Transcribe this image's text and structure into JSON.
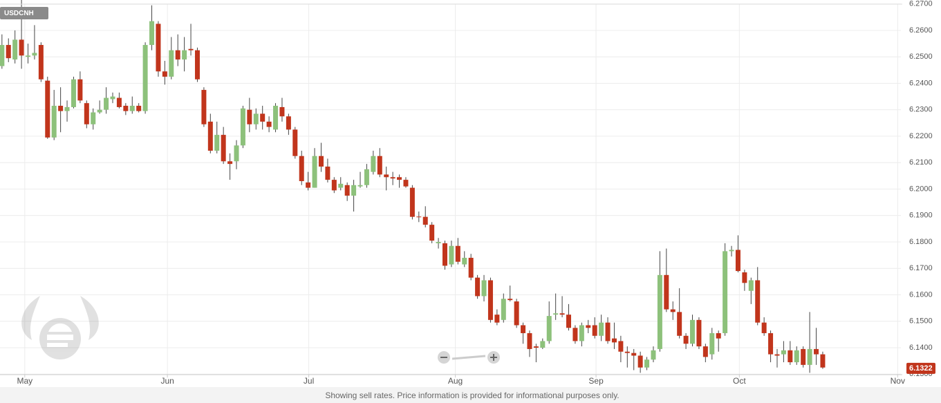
{
  "chart_data": {
    "type": "candlestick",
    "series": [
      {
        "name": "USDCNH",
        "up_color": "#8dc17b",
        "down_color": "#c1351c",
        "open": [
          6.2465,
          6.2545,
          6.249,
          6.2565,
          6.25,
          6.2505,
          6.2545,
          6.241,
          6.2195,
          6.2315,
          6.2295,
          6.231,
          6.2415,
          6.2325,
          6.2245,
          6.229,
          6.23,
          6.234,
          6.2345,
          6.2315,
          6.2295,
          6.2315,
          6.2295,
          6.2545,
          6.2625,
          6.2445,
          6.2425,
          6.2525,
          6.249,
          6.253,
          6.2525,
          6.2375,
          6.2255,
          6.2145,
          6.2205,
          6.2105,
          6.2105,
          6.2165,
          6.23,
          6.2245,
          6.2285,
          6.2255,
          6.2225,
          6.231,
          6.2275,
          6.2225,
          6.2125,
          6.2025,
          6.2005,
          6.2125,
          6.2085,
          6.2035,
          6.2005,
          6.2015,
          6.1975,
          6.201,
          6.2015,
          6.2065,
          6.2125,
          6.2055,
          6.2045,
          6.2045,
          6.2035,
          6.2005,
          6.1896,
          6.1895,
          6.1865,
          6.1795,
          6.1795,
          6.1715,
          6.1785,
          6.1715,
          6.174,
          6.1665,
          6.1595,
          6.1655,
          6.1525,
          6.1505,
          6.1585,
          6.1575,
          6.1485,
          6.1455,
          6.1405,
          6.14,
          6.1425,
          6.1525,
          6.153,
          6.1525,
          6.1475,
          6.1425,
          6.1485,
          6.1485,
          6.1445,
          6.1495,
          6.1435,
          6.1425,
          6.1385,
          6.138,
          6.137,
          6.1325,
          6.1355,
          6.1395,
          6.1675,
          6.1545,
          6.1535,
          6.1445,
          6.1415,
          6.1505,
          6.1405,
          6.1375,
          6.1455,
          6.1455,
          6.1765,
          6.177,
          6.1685,
          6.1615,
          6.1655,
          6.1495,
          6.1455,
          6.1375,
          6.1375,
          6.139,
          6.1345,
          6.1395,
          6.1335,
          6.1395,
          6.1375
        ],
        "high": [
          6.2585,
          6.257,
          6.26,
          6.273,
          6.255,
          6.262,
          6.2555,
          6.2425,
          6.2375,
          6.2385,
          6.2335,
          6.2425,
          6.2445,
          6.2335,
          6.2305,
          6.2335,
          6.2385,
          6.2365,
          6.2365,
          6.2325,
          6.235,
          6.2325,
          6.2555,
          6.2695,
          6.2635,
          6.2485,
          6.2575,
          6.2585,
          6.2575,
          6.2625,
          6.2535,
          6.2385,
          6.2285,
          6.2255,
          6.2235,
          6.2135,
          6.2185,
          6.2315,
          6.2345,
          6.2305,
          6.2315,
          6.2275,
          6.2325,
          6.2345,
          6.2285,
          6.2235,
          6.2145,
          6.2065,
          6.2155,
          6.2175,
          6.2115,
          6.2045,
          6.2045,
          6.2025,
          6.2035,
          6.2065,
          6.2095,
          6.2145,
          6.2155,
          6.2085,
          6.2065,
          6.2055,
          6.2045,
          6.2015,
          6.1915,
          6.1935,
          6.1875,
          6.1815,
          6.1805,
          6.1805,
          6.1815,
          6.1765,
          6.1755,
          6.1675,
          6.1675,
          6.1665,
          6.1545,
          6.1605,
          6.1635,
          6.1585,
          6.1495,
          6.1465,
          6.1415,
          6.1435,
          6.1575,
          6.1605,
          6.1595,
          6.1565,
          6.1485,
          6.1495,
          6.1505,
          6.1515,
          6.1525,
          6.1515,
          6.1495,
          6.1445,
          6.1405,
          6.1395,
          6.1385,
          6.1365,
          6.1405,
          6.1765,
          6.1775,
          6.1575,
          6.1625,
          6.1455,
          6.1525,
          6.1515,
          6.1415,
          6.1475,
          6.1465,
          6.1795,
          6.1785,
          6.1825,
          6.1695,
          6.1665,
          6.1705,
          6.1515,
          6.1465,
          6.1395,
          6.1425,
          6.1425,
          6.1405,
          6.1405,
          6.1535,
          6.1475,
          6.1385
        ],
        "low": [
          6.2455,
          6.248,
          6.2475,
          6.2455,
          6.2475,
          6.249,
          6.2405,
          6.219,
          6.2185,
          6.2215,
          6.2255,
          6.2305,
          6.2325,
          6.223,
          6.2225,
          6.2285,
          6.2285,
          6.2325,
          6.2305,
          6.228,
          6.2285,
          6.229,
          6.2285,
          6.2525,
          6.2425,
          6.2395,
          6.2415,
          6.2465,
          6.2445,
          6.2505,
          6.2405,
          6.2235,
          6.2135,
          6.2135,
          6.2095,
          6.2035,
          6.2075,
          6.2155,
          6.2215,
          6.2225,
          6.2225,
          6.2215,
          6.2215,
          6.2255,
          6.2205,
          6.2115,
          6.2015,
          6.1995,
          6.2005,
          6.2065,
          6.2025,
          6.1985,
          6.1995,
          6.1955,
          6.1915,
          6.2005,
          6.2005,
          6.2055,
          6.2045,
          6.1995,
          6.2015,
          6.2005,
          6.2005,
          6.1885,
          6.1875,
          6.1855,
          6.1795,
          6.1775,
          6.1695,
          6.1705,
          6.1715,
          6.1705,
          6.1655,
          6.1585,
          6.1575,
          6.1495,
          6.1485,
          6.1495,
          6.1575,
          6.1475,
          6.1415,
          6.1365,
          6.1345,
          6.1395,
          6.1415,
          6.1505,
          6.1515,
          6.1465,
          6.1415,
          6.1405,
          6.1455,
          6.1435,
          6.1425,
          6.1415,
          6.1395,
          6.1345,
          6.1325,
          6.1315,
          6.1305,
          6.1315,
          6.1345,
          6.1385,
          6.1535,
          6.1505,
          6.1435,
          6.1395,
          6.1405,
          6.1395,
          6.1345,
          6.1355,
          6.1385,
          6.1445,
          6.1745,
          6.1685,
          6.1615,
          6.1565,
          6.1485,
          6.1445,
          6.1345,
          6.1325,
          6.1345,
          6.1335,
          6.1335,
          6.1325,
          6.1305,
          6.1335,
          6.132
        ],
        "close": [
          6.2545,
          6.2495,
          6.2565,
          6.2505,
          6.2505,
          6.2515,
          6.2415,
          6.2195,
          6.2315,
          6.2295,
          6.231,
          6.2415,
          6.2335,
          6.2245,
          6.229,
          6.23,
          6.2345,
          6.235,
          6.231,
          6.2295,
          6.2315,
          6.2295,
          6.2545,
          6.2635,
          6.2445,
          6.2425,
          6.2525,
          6.249,
          6.2525,
          6.2525,
          6.2415,
          6.2245,
          6.2145,
          6.2205,
          6.2105,
          6.2095,
          6.2165,
          6.2305,
          6.2245,
          6.2285,
          6.2255,
          6.2235,
          6.2315,
          6.2275,
          6.2225,
          6.2125,
          6.203,
          6.2005,
          6.2125,
          6.2085,
          6.2035,
          6.1995,
          6.202,
          6.1975,
          6.2015,
          6.2015,
          6.2075,
          6.2125,
          6.2055,
          6.2045,
          6.204,
          6.2035,
          6.201,
          6.1895,
          6.1895,
          6.1865,
          6.1805,
          6.18,
          6.171,
          6.1785,
          6.1725,
          6.174,
          6.1665,
          6.1595,
          6.1655,
          6.1505,
          6.1495,
          6.1585,
          6.158,
          6.1485,
          6.1455,
          6.1395,
          6.14,
          6.1425,
          6.152,
          6.153,
          6.1525,
          6.1475,
          6.1425,
          6.1485,
          6.1475,
          6.1445,
          6.1495,
          6.1425,
          6.142,
          6.1385,
          6.138,
          6.137,
          6.1325,
          6.1355,
          6.139,
          6.1675,
          6.1545,
          6.1535,
          6.1445,
          6.1415,
          6.1505,
          6.1405,
          6.1365,
          6.1455,
          6.1435,
          6.1765,
          6.177,
          6.169,
          6.1645,
          6.1655,
          6.1495,
          6.1455,
          6.1375,
          6.137,
          6.139,
          6.1345,
          6.139,
          6.1335,
          6.1395,
          6.1375,
          6.1325
        ]
      }
    ],
    "last_value": 6.1322,
    "xlim": [
      -0.3,
      138
    ],
    "xticks": [
      {
        "value": 3.5,
        "label": "May"
      },
      {
        "value": 25.4,
        "label": "Jun"
      },
      {
        "value": 47.1,
        "label": "Jul"
      },
      {
        "value": 69.6,
        "label": "Aug"
      },
      {
        "value": 91.2,
        "label": "Sep"
      },
      {
        "value": 113.2,
        "label": "Oct"
      },
      {
        "value": 137.5,
        "label": "Nov"
      }
    ],
    "ylim": [
      6.13,
      6.27
    ],
    "yticks": [
      {
        "value": 6.27,
        "label": "6.2700"
      },
      {
        "value": 6.26,
        "label": "6.2600"
      },
      {
        "value": 6.25,
        "label": "6.2500"
      },
      {
        "value": 6.24,
        "label": "6.2400"
      },
      {
        "value": 6.23,
        "label": "6.2300"
      },
      {
        "value": 6.22,
        "label": "6.2200"
      },
      {
        "value": 6.21,
        "label": "6.2100"
      },
      {
        "value": 6.2,
        "label": "6.2000"
      },
      {
        "value": 6.19,
        "label": "6.1900"
      },
      {
        "value": 6.18,
        "label": "6.1800"
      },
      {
        "value": 6.17,
        "label": "6.1700"
      },
      {
        "value": 6.16,
        "label": "6.1600"
      },
      {
        "value": 6.15,
        "label": "6.1500"
      },
      {
        "value": 6.14,
        "label": "6.1400"
      },
      {
        "value": 6.13,
        "label": "6.1300"
      }
    ],
    "grid": true,
    "footnote": "Showing sell rates. Price information is provided for informational purposes only."
  }
}
